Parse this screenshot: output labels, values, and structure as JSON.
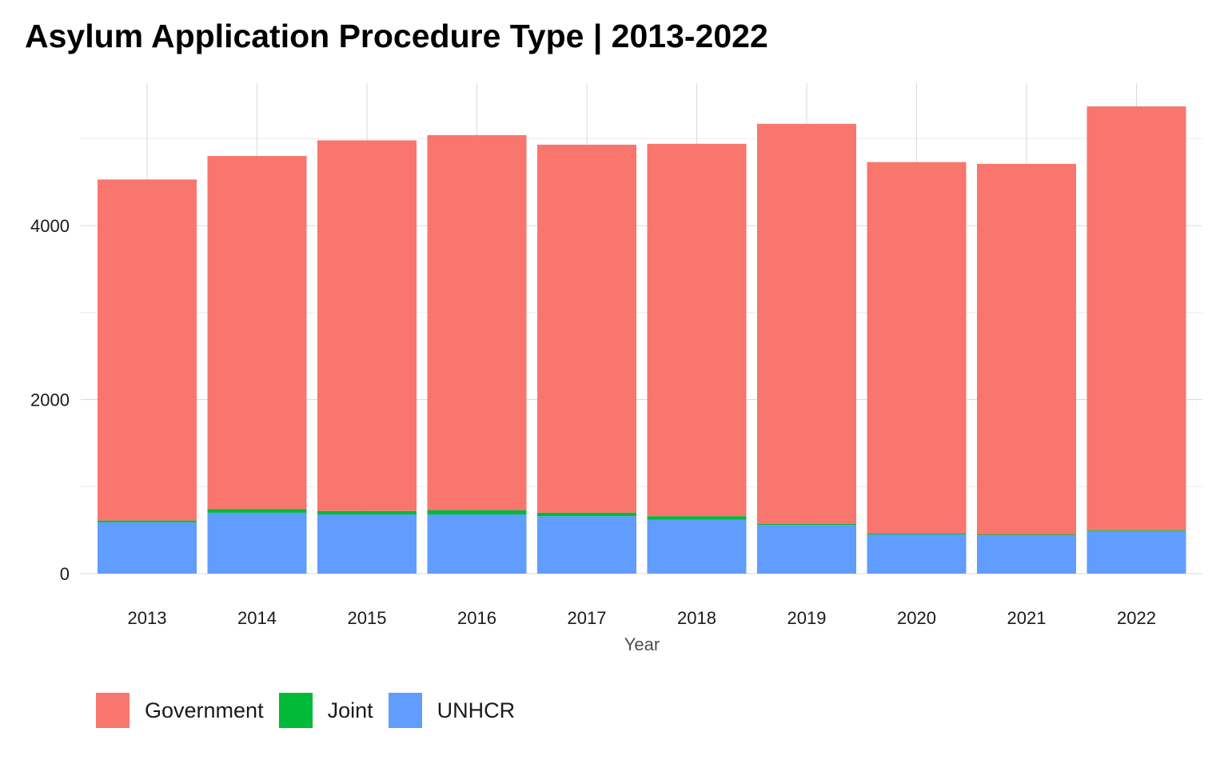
{
  "chart_data": {
    "type": "bar",
    "stacked": true,
    "title": "Asylum Application Procedure Type | 2013-2022",
    "xlabel": "Year",
    "ylabel": "",
    "categories": [
      "2013",
      "2014",
      "2015",
      "2016",
      "2017",
      "2018",
      "2019",
      "2020",
      "2021",
      "2022"
    ],
    "ylim": [
      0,
      5600
    ],
    "yticks": [
      0,
      2000,
      4000
    ],
    "series": [
      {
        "name": "UNHCR",
        "color": "#619CFF",
        "values": [
          590,
          700,
          680,
          680,
          660,
          620,
          560,
          450,
          440,
          490
        ]
      },
      {
        "name": "Joint",
        "color": "#00BA38",
        "values": [
          20,
          40,
          40,
          50,
          40,
          40,
          10,
          10,
          10,
          10
        ]
      },
      {
        "name": "Government",
        "color": "#F8766D",
        "values": [
          3920,
          4060,
          4260,
          4310,
          4230,
          4280,
          4600,
          4270,
          4260,
          4870
        ]
      }
    ],
    "legend": {
      "position": "bottom-left",
      "entries": [
        {
          "label": "Government",
          "color": "#F8766D"
        },
        {
          "label": "Joint",
          "color": "#00BA38"
        },
        {
          "label": "UNHCR",
          "color": "#619CFF"
        }
      ]
    },
    "grid": true
  }
}
